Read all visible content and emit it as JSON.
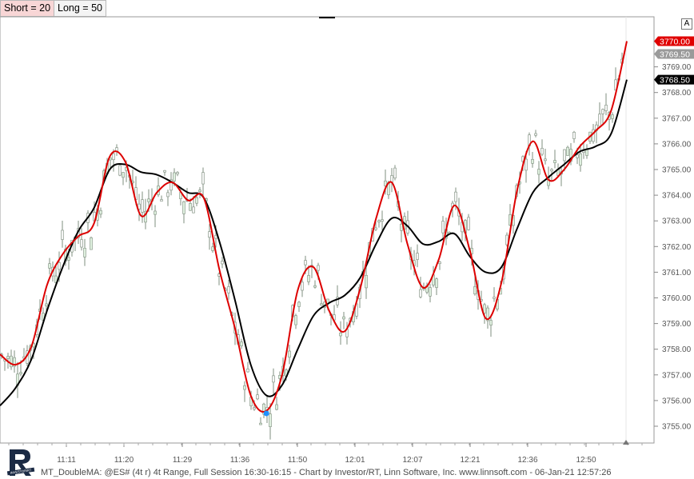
{
  "legend": {
    "short": "Short = 20",
    "long": "Long = 50"
  },
  "corner_button": "A",
  "footer_text": "MT_DoubleMA: @ES# (4t r) 4t Range, Full Session 16:30-16:15 - Chart by Investor/RT, Linn Software, Inc. www.linnsoft.com - 06-Jan-21 12:57:26",
  "colors": {
    "short_ma": "#dd0000",
    "long_ma": "#000000",
    "candle_up": "#dff0df",
    "candle_down": "#f4f4f4",
    "candle_wick": "#7f8f7f",
    "marker": "#1e90ff"
  },
  "logo_icon": "investor-rt-logo-icon",
  "chart_data": {
    "type": "line",
    "title": "",
    "xlabel": "",
    "ylabel": "",
    "ylim": [
      3754.5,
      3771.0
    ],
    "grid": false,
    "y_ticks": [
      "3755.00",
      "3756.00",
      "3757.00",
      "3758.00",
      "3759.00",
      "3760.00",
      "3761.00",
      "3762.00",
      "3763.00",
      "3764.00",
      "3765.00",
      "3766.00",
      "3767.00",
      "3768.00",
      "3769.00"
    ],
    "x_ticks": [
      "11:11",
      "11:20",
      "11:29",
      "11:36",
      "11:50",
      "12:01",
      "12:07",
      "12:21",
      "12:36",
      "12:50"
    ],
    "price_labels": [
      {
        "text": "3770.00",
        "value": 3770.0,
        "series": "Short = 20"
      },
      {
        "text": "3769.50",
        "value": 3769.5,
        "series": "Last"
      },
      {
        "text": "3768.50",
        "value": 3768.5,
        "series": "Long = 50"
      }
    ],
    "series": [
      {
        "name": "Short = 20",
        "values": [
          3757.8,
          3757.4,
          3758.1,
          3760.5,
          3761.7,
          3762.4,
          3762.9,
          3765.5,
          3765.3,
          3763.2,
          3764.1,
          3764.5,
          3763.8,
          3763.9,
          3761.1,
          3758.8,
          3756.2,
          3755.6,
          3757.0,
          3760.3,
          3761.2,
          3759.5,
          3758.7,
          3760.4,
          3763.1,
          3764.5,
          3762.1,
          3760.4,
          3761.5,
          3763.6,
          3761.8,
          3759.2,
          3760.6,
          3764.2,
          3766.1,
          3764.6,
          3765.0,
          3765.9,
          3766.5,
          3767.3,
          3770.0
        ]
      },
      {
        "name": "Long = 50",
        "values": [
          3755.8,
          3756.5,
          3757.6,
          3759.5,
          3761.2,
          3762.6,
          3763.5,
          3765.0,
          3765.2,
          3764.9,
          3764.8,
          3764.5,
          3764.1,
          3763.9,
          3762.2,
          3759.9,
          3757.4,
          3756.2,
          3756.6,
          3758.0,
          3759.3,
          3759.8,
          3760.1,
          3760.8,
          3762.1,
          3763.1,
          3762.8,
          3762.1,
          3762.2,
          3762.5,
          3761.6,
          3761.0,
          3761.2,
          3762.7,
          3764.1,
          3764.7,
          3765.2,
          3765.7,
          3765.9,
          3766.4,
          3768.5
        ]
      }
    ],
    "low_marker": {
      "value": 3755.5
    }
  }
}
